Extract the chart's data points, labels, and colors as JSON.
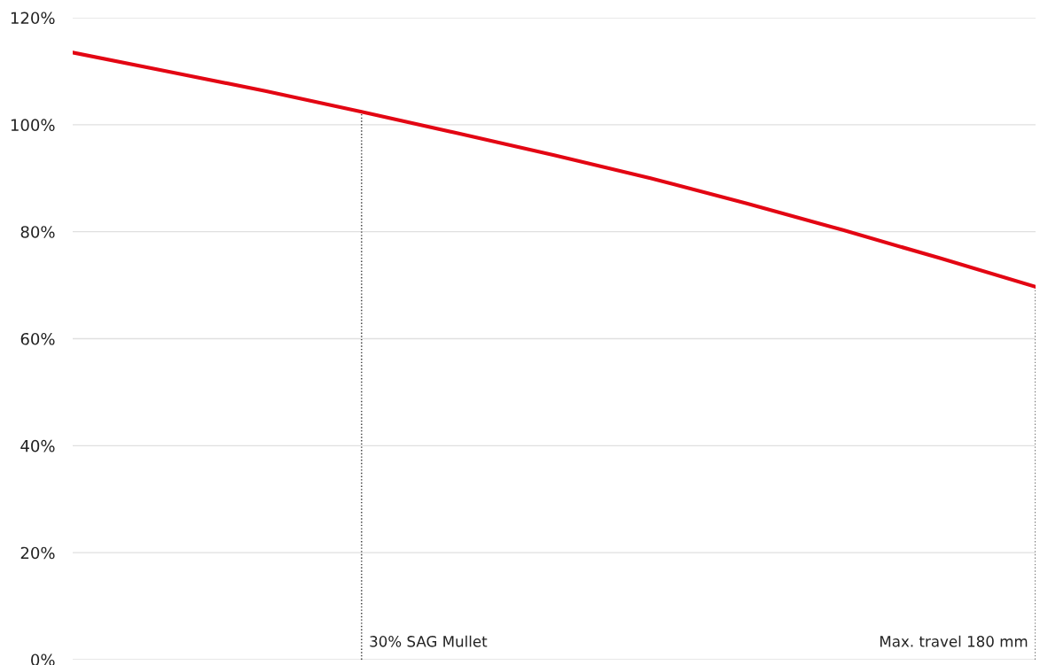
{
  "chart_data": {
    "type": "line",
    "categories": [
      null,
      null,
      null,
      null,
      null,
      null,
      null,
      null,
      null,
      null,
      null
    ],
    "series": [
      {
        "color": "#e30613",
        "values": [
          113.5,
          109.9,
          106.3,
          102.4,
          98.4,
          94.3,
          90.0,
          85.3,
          80.3,
          75.1,
          69.7
        ]
      }
    ],
    "ylim": [
      0,
      120
    ],
    "yticks": [
      {
        "value": 0,
        "label": "0%"
      },
      {
        "value": 20,
        "label": "20%"
      },
      {
        "value": 40,
        "label": "40%"
      },
      {
        "value": 60,
        "label": "60%"
      },
      {
        "value": 80,
        "label": "80%"
      },
      {
        "value": 100,
        "label": "100%"
      },
      {
        "value": 120,
        "label": "120%"
      }
    ],
    "tick_labels": "y",
    "grid": "y",
    "marker": "none",
    "line_style": "solid",
    "legend": false,
    "annotations": [
      "30% SAG Mullet",
      "Max. travel 180 mm"
    ]
  }
}
